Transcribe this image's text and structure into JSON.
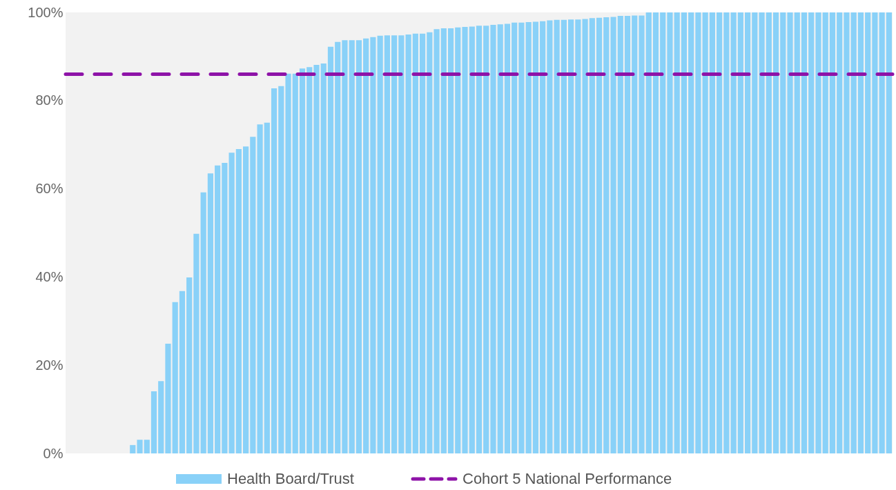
{
  "chart_data": {
    "type": "bar",
    "categories": [
      null,
      null,
      null,
      null,
      null,
      null,
      null,
      null,
      null,
      null,
      null,
      null,
      null,
      null,
      null,
      null,
      null,
      null,
      null,
      null,
      null,
      null,
      null,
      null,
      null,
      null,
      null,
      null,
      null,
      null,
      null,
      null,
      null,
      null,
      null,
      null,
      null,
      null,
      null,
      null,
      null,
      null,
      null,
      null,
      null,
      null,
      null,
      null,
      null,
      null,
      null,
      null,
      null,
      null,
      null,
      null,
      null,
      null,
      null,
      null,
      null,
      null,
      null,
      null,
      null,
      null,
      null,
      null,
      null,
      null,
      null,
      null,
      null,
      null,
      null,
      null,
      null,
      null,
      null,
      null,
      null,
      null,
      null,
      null,
      null,
      null,
      null,
      null,
      null,
      null,
      null,
      null,
      null,
      null,
      null,
      null,
      null,
      null,
      null,
      null,
      null,
      null,
      null,
      null,
      null,
      null,
      null,
      null,
      null,
      null,
      null,
      null,
      null,
      null,
      null,
      null,
      null
    ],
    "series": [
      {
        "name": "Health Board/Trust",
        "color": "#89d1f8",
        "values": [
          0,
          0,
          0,
          0,
          0,
          0,
          0,
          0,
          0,
          1.9,
          3.1,
          3.1,
          14.1,
          16.4,
          24.9,
          34.3,
          36.8,
          39.9,
          49.8,
          59.2,
          63.5,
          65.3,
          65.9,
          68.2,
          69.0,
          69.6,
          71.8,
          74.6,
          75.0,
          82.8,
          83.3,
          86.1,
          86.1,
          87.3,
          87.6,
          88.1,
          88.4,
          92.2,
          93.3,
          93.7,
          93.7,
          93.7,
          94.1,
          94.4,
          94.7,
          94.8,
          94.8,
          94.8,
          95.0,
          95.2,
          95.2,
          95.5,
          96.2,
          96.4,
          96.4,
          96.6,
          96.7,
          96.8,
          97.0,
          97.0,
          97.2,
          97.3,
          97.4,
          97.7,
          97.7,
          97.8,
          97.9,
          98.0,
          98.2,
          98.3,
          98.3,
          98.4,
          98.4,
          98.5,
          98.7,
          98.8,
          98.9,
          99.0,
          99.2,
          99.2,
          99.3,
          99.3,
          100,
          100,
          100,
          100,
          100,
          100,
          100,
          100,
          100,
          100,
          100,
          100,
          100,
          100,
          100,
          100,
          100,
          100,
          100,
          100,
          100,
          100,
          100,
          100,
          100,
          100,
          100,
          100,
          100,
          100,
          100,
          100,
          100,
          100,
          100
        ]
      }
    ],
    "ref_lines": [
      {
        "axis": "y",
        "value": 86,
        "label": "Cohort 5 National Performance",
        "color": "#8e13a8",
        "line_style": "dashed"
      }
    ],
    "ylim": [
      0,
      100
    ],
    "yticks": [
      {
        "value": 0,
        "label": "0%"
      },
      {
        "value": 20,
        "label": "20%"
      },
      {
        "value": 40,
        "label": "40%"
      },
      {
        "value": 60,
        "label": "60%"
      },
      {
        "value": 80,
        "label": "80%"
      },
      {
        "value": 100,
        "label": "100%"
      }
    ],
    "tick_labels": "y",
    "grid": false,
    "legend": "bottom"
  }
}
